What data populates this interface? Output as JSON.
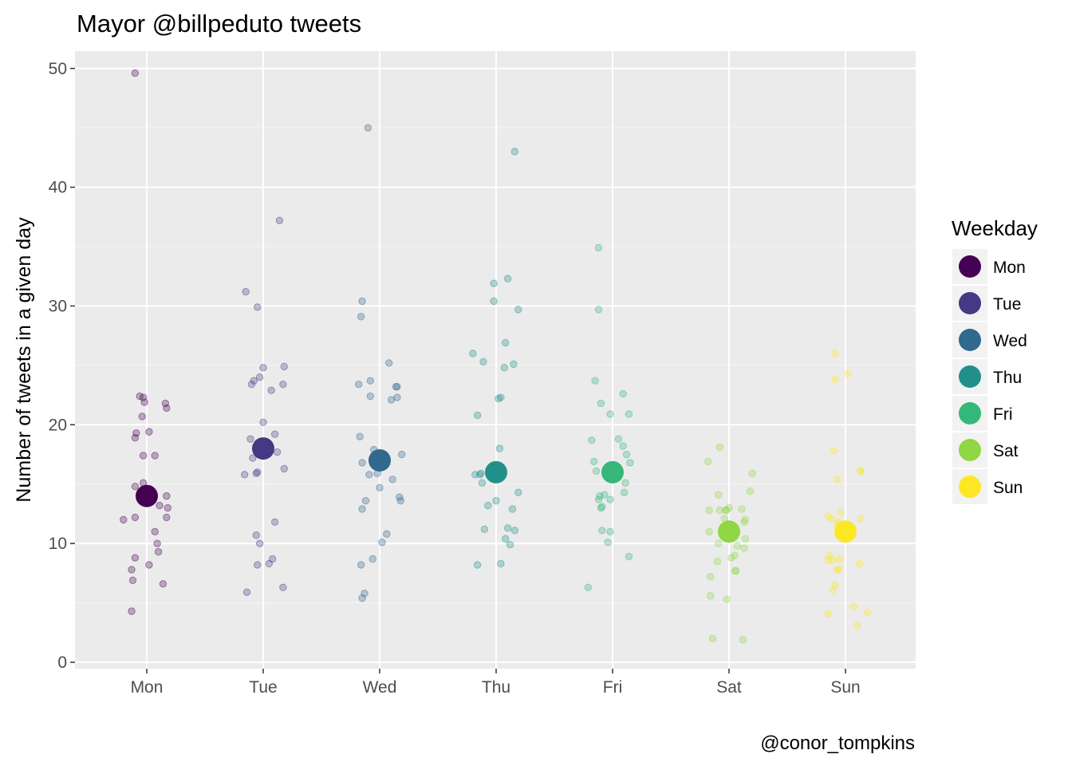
{
  "chart_data": {
    "type": "scatter",
    "title": "Mayor @billpeduto tweets",
    "xlabel": "",
    "ylabel": "Number of tweets in a given day",
    "caption": "@conor_tompkins",
    "categories": [
      "Mon",
      "Tue",
      "Wed",
      "Thu",
      "Fri",
      "Sat",
      "Sun"
    ],
    "y_ticks": [
      "0",
      "10",
      "20",
      "30",
      "40",
      "50"
    ],
    "ylim": [
      0,
      52
    ],
    "grid": true,
    "legend": {
      "title": "Weekday",
      "placement": "right",
      "items": [
        "Mon",
        "Tue",
        "Wed",
        "Thu",
        "Fri",
        "Sat",
        "Sun"
      ]
    },
    "colors": [
      "#440154",
      "#443A83",
      "#31688E",
      "#21908C",
      "#35B779",
      "#8FD744",
      "#FDE725"
    ],
    "panel_background": "#EBEBEB",
    "medians": [
      14,
      18,
      17,
      16,
      16,
      11,
      11
    ],
    "series": [
      {
        "name": "Mon",
        "points": [
          [
            -0.1,
            49.6
          ],
          [
            -0.06,
            22.4
          ],
          [
            -0.03,
            22.3
          ],
          [
            -0.02,
            21.9
          ],
          [
            0.16,
            21.8
          ],
          [
            0.17,
            21.4
          ],
          [
            -0.04,
            20.7
          ],
          [
            -0.09,
            19.3
          ],
          [
            0.02,
            19.4
          ],
          [
            -0.1,
            18.9
          ],
          [
            -0.03,
            17.4
          ],
          [
            0.07,
            17.4
          ],
          [
            -0.03,
            15.1
          ],
          [
            -0.1,
            14.8
          ],
          [
            0.0,
            14.6
          ],
          [
            0.17,
            14.0
          ],
          [
            0.11,
            13.2
          ],
          [
            0.18,
            13.0
          ],
          [
            -0.1,
            12.2
          ],
          [
            -0.2,
            12.0
          ],
          [
            0.17,
            12.2
          ],
          [
            0.07,
            11.0
          ],
          [
            0.09,
            10.0
          ],
          [
            0.1,
            9.3
          ],
          [
            -0.1,
            8.8
          ],
          [
            0.02,
            8.2
          ],
          [
            -0.13,
            7.8
          ],
          [
            -0.12,
            6.9
          ],
          [
            0.14,
            6.6
          ],
          [
            -0.13,
            4.3
          ]
        ]
      },
      {
        "name": "Tue",
        "points": [
          [
            -0.15,
            31.2
          ],
          [
            0.14,
            37.2
          ],
          [
            -0.05,
            29.9
          ],
          [
            -0.03,
            24.0
          ],
          [
            -0.08,
            23.7
          ],
          [
            0.0,
            24.8
          ],
          [
            0.18,
            24.9
          ],
          [
            -0.1,
            23.4
          ],
          [
            0.17,
            23.4
          ],
          [
            0.07,
            22.9
          ],
          [
            0.0,
            20.2
          ],
          [
            -0.11,
            18.8
          ],
          [
            0.1,
            19.2
          ],
          [
            -0.05,
            17.9
          ],
          [
            -0.09,
            17.2
          ],
          [
            0.12,
            17.7
          ],
          [
            0.18,
            16.3
          ],
          [
            -0.05,
            16.0
          ],
          [
            -0.16,
            15.8
          ],
          [
            -0.06,
            15.9
          ],
          [
            -0.06,
            10.7
          ],
          [
            0.1,
            11.8
          ],
          [
            -0.03,
            10.0
          ],
          [
            0.05,
            8.3
          ],
          [
            0.08,
            8.7
          ],
          [
            -0.05,
            8.2
          ],
          [
            0.17,
            6.3
          ],
          [
            -0.14,
            5.9
          ]
        ]
      },
      {
        "name": "Wed",
        "points": [
          [
            -0.1,
            45.0
          ],
          [
            -0.15,
            30.4
          ],
          [
            -0.16,
            29.1
          ],
          [
            0.08,
            25.2
          ],
          [
            -0.18,
            23.4
          ],
          [
            -0.08,
            23.7
          ],
          [
            0.14,
            23.2
          ],
          [
            0.15,
            23.2
          ],
          [
            -0.08,
            22.4
          ],
          [
            0.1,
            22.1
          ],
          [
            0.15,
            22.3
          ],
          [
            -0.17,
            19.0
          ],
          [
            -0.05,
            17.9
          ],
          [
            0.19,
            17.5
          ],
          [
            -0.15,
            16.8
          ],
          [
            0.02,
            16.9
          ],
          [
            -0.09,
            15.8
          ],
          [
            -0.02,
            15.9
          ],
          [
            0.11,
            15.4
          ],
          [
            0.17,
            13.9
          ],
          [
            0.18,
            13.6
          ],
          [
            -0.15,
            12.9
          ],
          [
            0.0,
            14.7
          ],
          [
            -0.12,
            13.6
          ],
          [
            0.06,
            10.8
          ],
          [
            0.02,
            10.1
          ],
          [
            -0.06,
            8.7
          ],
          [
            -0.16,
            8.2
          ],
          [
            -0.13,
            5.8
          ],
          [
            -0.15,
            5.4
          ]
        ]
      },
      {
        "name": "Thu",
        "points": [
          [
            0.16,
            43.0
          ],
          [
            -0.02,
            31.9
          ],
          [
            0.1,
            32.3
          ],
          [
            0.19,
            29.7
          ],
          [
            -0.02,
            30.4
          ],
          [
            -0.2,
            26.0
          ],
          [
            -0.11,
            25.3
          ],
          [
            0.08,
            26.9
          ],
          [
            0.15,
            25.1
          ],
          [
            0.07,
            24.8
          ],
          [
            0.04,
            22.3
          ],
          [
            0.02,
            22.2
          ],
          [
            -0.16,
            20.8
          ],
          [
            0.03,
            18.0
          ],
          [
            -0.13,
            15.9
          ],
          [
            -0.14,
            15.8
          ],
          [
            -0.18,
            15.8
          ],
          [
            -0.12,
            15.1
          ],
          [
            -0.05,
            16.0
          ],
          [
            0.19,
            14.3
          ],
          [
            0.0,
            13.6
          ],
          [
            -0.07,
            13.2
          ],
          [
            0.14,
            12.9
          ],
          [
            -0.1,
            11.2
          ],
          [
            0.1,
            11.3
          ],
          [
            0.16,
            11.1
          ],
          [
            0.08,
            10.4
          ],
          [
            0.12,
            9.9
          ],
          [
            -0.16,
            8.2
          ],
          [
            0.04,
            8.3
          ]
        ]
      },
      {
        "name": "Fri",
        "points": [
          [
            -0.12,
            34.9
          ],
          [
            -0.12,
            29.7
          ],
          [
            -0.15,
            23.7
          ],
          [
            0.09,
            22.6
          ],
          [
            -0.1,
            21.8
          ],
          [
            -0.02,
            20.9
          ],
          [
            0.14,
            20.9
          ],
          [
            -0.18,
            18.7
          ],
          [
            0.05,
            18.8
          ],
          [
            0.09,
            18.2
          ],
          [
            -0.16,
            16.9
          ],
          [
            0.15,
            16.8
          ],
          [
            0.12,
            17.5
          ],
          [
            -0.14,
            16.1
          ],
          [
            0.11,
            15.1
          ],
          [
            -0.11,
            14.0
          ],
          [
            -0.07,
            14.1
          ],
          [
            -0.12,
            13.7
          ],
          [
            0.1,
            14.3
          ],
          [
            -0.02,
            13.7
          ],
          [
            -0.09,
            13.1
          ],
          [
            -0.1,
            13.0
          ],
          [
            -0.09,
            11.1
          ],
          [
            -0.02,
            11.0
          ],
          [
            -0.04,
            10.1
          ],
          [
            0.14,
            8.9
          ],
          [
            -0.21,
            6.3
          ]
        ]
      },
      {
        "name": "Sat",
        "points": [
          [
            -0.08,
            18.1
          ],
          [
            -0.18,
            16.9
          ],
          [
            0.2,
            15.9
          ],
          [
            0.18,
            14.4
          ],
          [
            -0.09,
            14.1
          ],
          [
            0.0,
            13.0
          ],
          [
            0.11,
            12.9
          ],
          [
            -0.17,
            12.8
          ],
          [
            -0.08,
            12.8
          ],
          [
            -0.03,
            12.8
          ],
          [
            -0.02,
            12.8
          ],
          [
            -0.04,
            12.1
          ],
          [
            0.14,
            12.0
          ],
          [
            0.13,
            11.8
          ],
          [
            -0.17,
            11.0
          ],
          [
            -0.03,
            10.8
          ],
          [
            0.14,
            10.4
          ],
          [
            0.07,
            9.8
          ],
          [
            -0.09,
            10.0
          ],
          [
            0.13,
            9.6
          ],
          [
            0.05,
            9.0
          ],
          [
            0.02,
            8.8
          ],
          [
            -0.1,
            8.5
          ],
          [
            0.06,
            7.7
          ],
          [
            0.05,
            7.7
          ],
          [
            -0.16,
            7.2
          ],
          [
            -0.16,
            5.6
          ],
          [
            -0.02,
            5.3
          ],
          [
            -0.14,
            2.0
          ],
          [
            0.12,
            1.9
          ]
        ]
      },
      {
        "name": "Sun",
        "points": [
          [
            -0.09,
            26.0
          ],
          [
            0.02,
            24.3
          ],
          [
            -0.09,
            23.8
          ],
          [
            -0.1,
            17.8
          ],
          [
            0.13,
            16.1
          ],
          [
            -0.07,
            15.4
          ],
          [
            0.13,
            16.1
          ],
          [
            -0.15,
            12.3
          ],
          [
            -0.12,
            12.1
          ],
          [
            -0.04,
            12.6
          ],
          [
            0.13,
            12.1
          ],
          [
            -0.06,
            11.8
          ],
          [
            -0.07,
            11.6
          ],
          [
            -0.14,
            9.0
          ],
          [
            -0.15,
            8.6
          ],
          [
            -0.11,
            8.6
          ],
          [
            -0.05,
            8.7
          ],
          [
            -0.06,
            7.8
          ],
          [
            -0.07,
            7.8
          ],
          [
            0.12,
            8.3
          ],
          [
            -0.09,
            6.5
          ],
          [
            -0.11,
            6.1
          ],
          [
            0.07,
            4.7
          ],
          [
            -0.15,
            4.1
          ],
          [
            0.19,
            4.2
          ],
          [
            0.1,
            3.1
          ]
        ]
      }
    ]
  }
}
